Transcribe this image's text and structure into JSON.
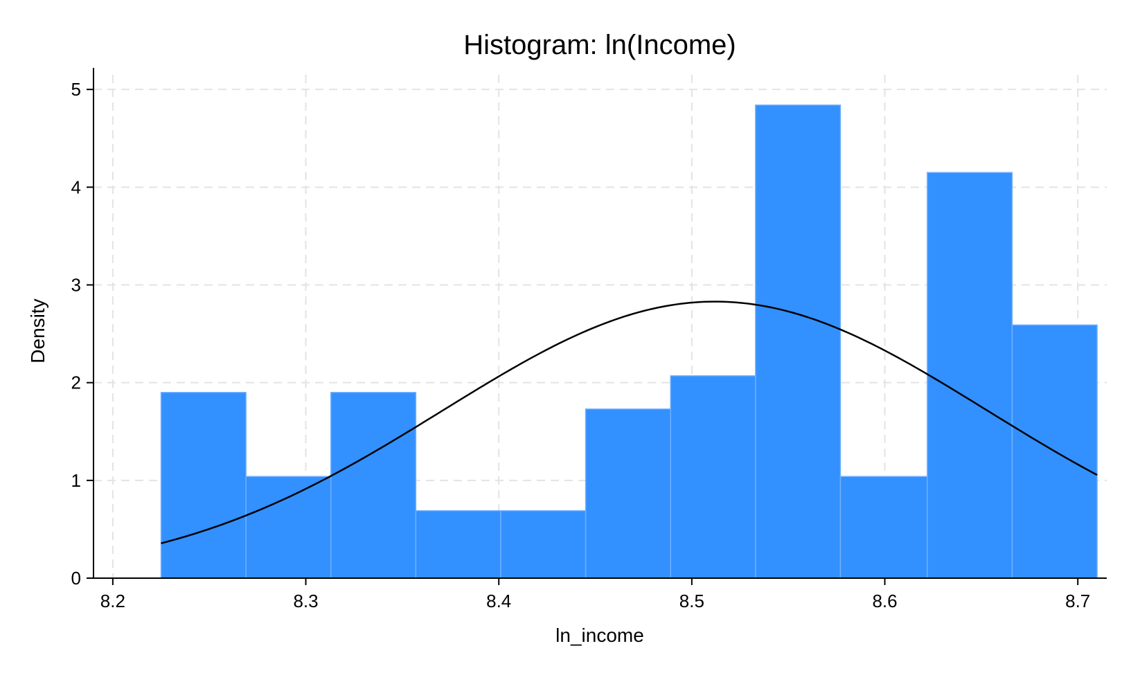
{
  "chart_data": {
    "type": "bar",
    "title": "Histogram: ln(Income)",
    "xlabel": "ln_income",
    "ylabel": "Density",
    "xlim": [
      8.19,
      8.715
    ],
    "ylim": [
      0,
      5.15
    ],
    "xticks": [
      8.2,
      8.3,
      8.4,
      8.5,
      8.6,
      8.7
    ],
    "xtick_labels": [
      "8.2",
      "8.3",
      "8.4",
      "8.5",
      "8.6",
      "8.7"
    ],
    "yticks": [
      0,
      1,
      2,
      3,
      4,
      5
    ],
    "ytick_labels": [
      "0",
      "1",
      "2",
      "3",
      "4",
      "5"
    ],
    "grid": true,
    "bins": [
      {
        "x0": 8.225,
        "x1": 8.269,
        "density": 1.9
      },
      {
        "x0": 8.269,
        "x1": 8.313,
        "density": 1.04
      },
      {
        "x0": 8.313,
        "x1": 8.357,
        "density": 1.9
      },
      {
        "x0": 8.357,
        "x1": 8.401,
        "density": 0.69
      },
      {
        "x0": 8.401,
        "x1": 8.445,
        "density": 0.69
      },
      {
        "x0": 8.445,
        "x1": 8.489,
        "density": 1.73
      },
      {
        "x0": 8.489,
        "x1": 8.533,
        "density": 2.07
      },
      {
        "x0": 8.533,
        "x1": 8.577,
        "density": 4.84
      },
      {
        "x0": 8.577,
        "x1": 8.622,
        "density": 1.04
      },
      {
        "x0": 8.622,
        "x1": 8.666,
        "density": 4.15
      },
      {
        "x0": 8.666,
        "x1": 8.71,
        "density": 2.59
      }
    ],
    "normal_overlay": {
      "mean": 8.512,
      "sd": 0.141,
      "x_range": [
        8.225,
        8.71
      ]
    },
    "colors": {
      "bar_fill": "#3390ff",
      "bar_edge": "#6fb0ff",
      "curve": "#000000",
      "grid": "#e3e3e3"
    }
  }
}
